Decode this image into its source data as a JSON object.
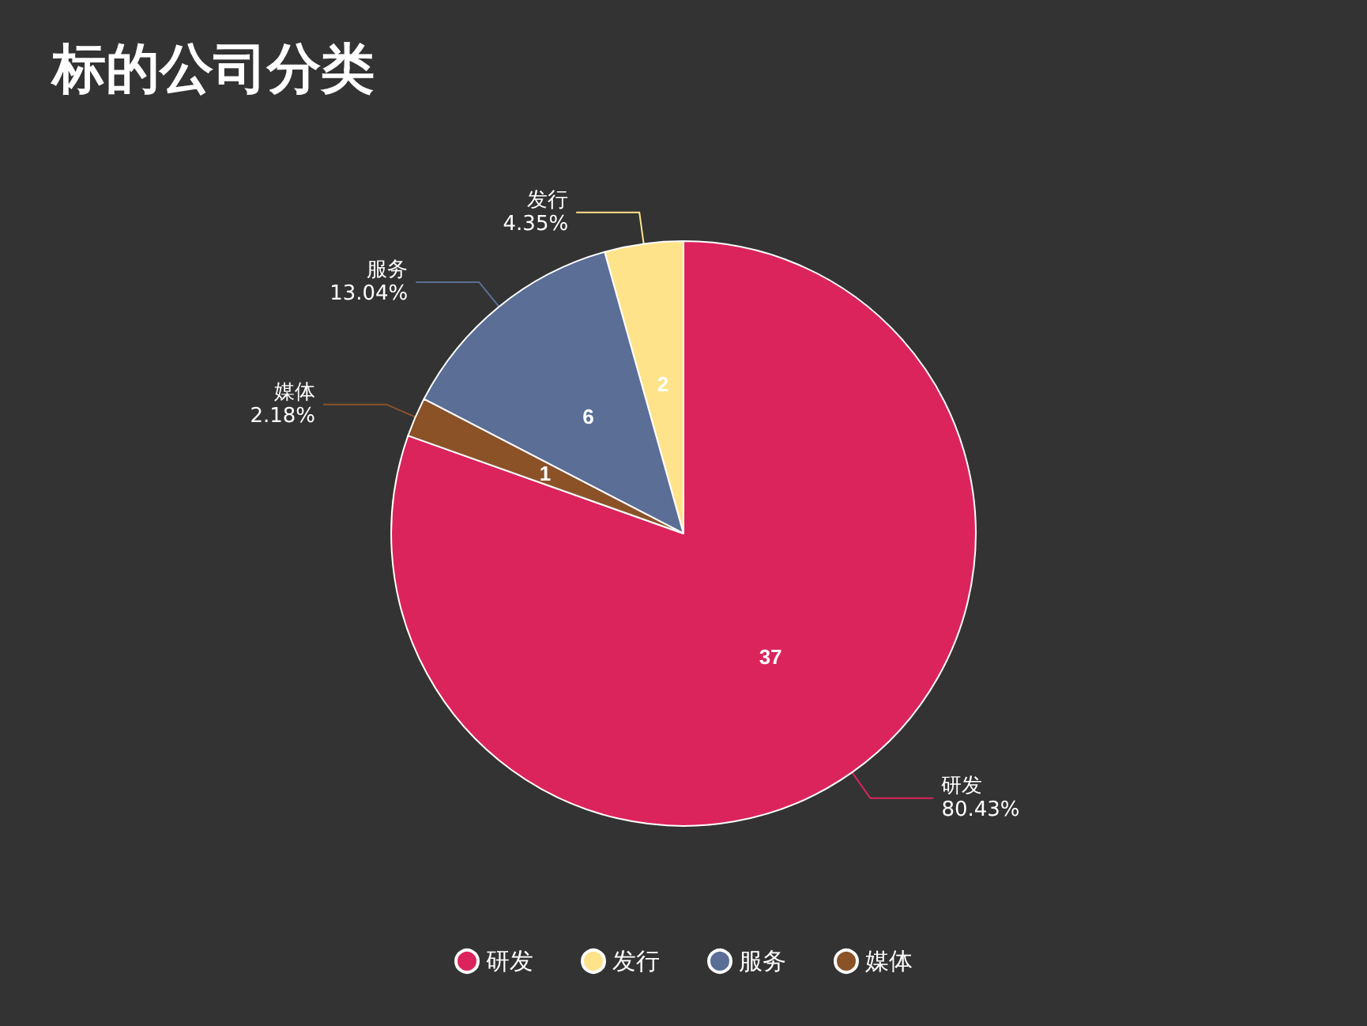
{
  "chart_data": {
    "type": "pie",
    "title": "标的公司分类",
    "categories": [
      "研发",
      "发行",
      "服务",
      "媒体"
    ],
    "values": [
      37,
      2,
      6,
      1
    ],
    "colors": [
      "#dc245c",
      "#ffe38a",
      "#5a6e96",
      "#8b5228"
    ],
    "annotations": [
      "80.43%",
      "4.35%",
      "13.04%",
      "2.18%"
    ],
    "data_labels": true,
    "legend": "bottom"
  }
}
